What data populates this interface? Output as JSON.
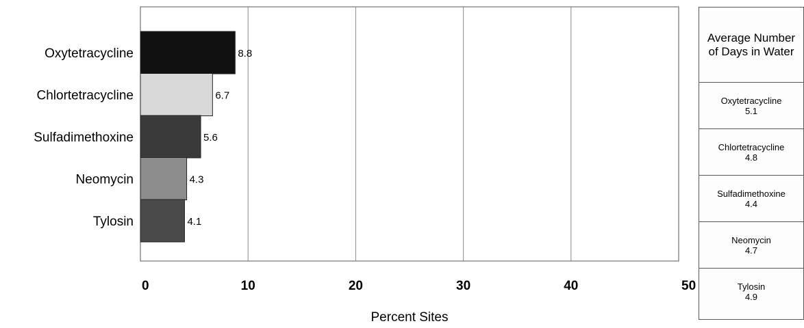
{
  "chart_data": {
    "type": "bar",
    "orientation": "horizontal",
    "categories": [
      "Oxytetracycline",
      "Chlortetracycline",
      "Sulfadimethoxine",
      "Neomycin",
      "Tylosin"
    ],
    "values": [
      8.8,
      6.7,
      5.6,
      4.3,
      4.1
    ],
    "value_labels": [
      "8.8",
      "6.7",
      "5.6",
      "4.3",
      "4.1"
    ],
    "bar_colors": [
      "#111111",
      "#d9d9d9",
      "#3a3a3a",
      "#8c8c8c",
      "#4a4a4a"
    ],
    "xlabel": "Percent Sites",
    "xlim": [
      0,
      50
    ],
    "xticks": [
      "0",
      "10",
      "20",
      "30",
      "40",
      "50"
    ],
    "grid": "vertical"
  },
  "side_table": {
    "header": "Average Number of Days in Water",
    "rows": [
      {
        "name": "Oxytetracycline",
        "value": "5.1"
      },
      {
        "name": "Chlortetracycline",
        "value": "4.8"
      },
      {
        "name": "Sulfadimethoxine",
        "value": "4.4"
      },
      {
        "name": "Neomycin",
        "value": "4.7"
      },
      {
        "name": "Tylosin",
        "value": "4.9"
      }
    ]
  }
}
